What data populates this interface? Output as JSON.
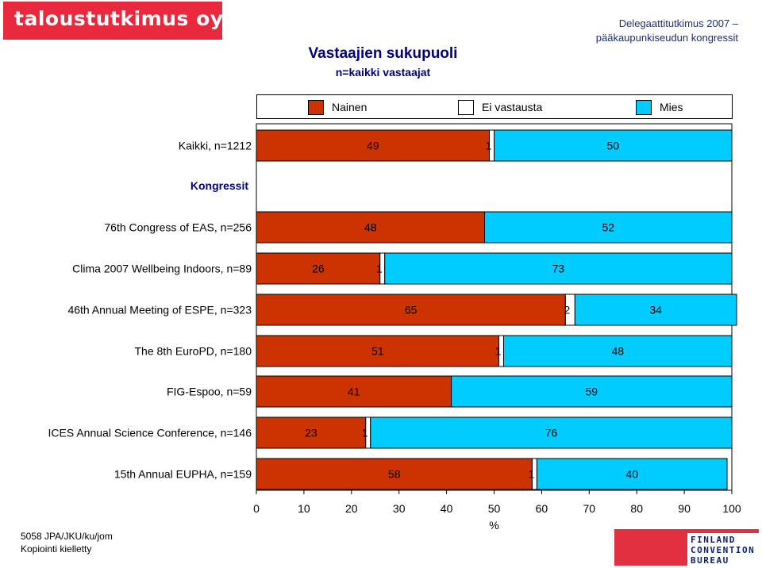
{
  "header": {
    "logo_text": "taloustutkimus oy",
    "corner_line1": "Delegaattitutkimus 2007 –",
    "corner_line2": "pääkaupunkiseudun kongressit"
  },
  "footer": {
    "code": "5058 JPA/JKU/ku/jom",
    "copyright": "Kopiointi kielletty",
    "brand_lines": [
      "FINLAND",
      "CONVENTION",
      "BUREAU"
    ]
  },
  "colors": {
    "nainen": "#cc3300",
    "ei_vastausta": "#ffffff",
    "mies": "#00ccff",
    "logo_red": "#e8283c"
  },
  "chart_data": {
    "type": "bar",
    "orientation": "horizontal",
    "stacked": true,
    "title": "Vastaajien sukupuoli",
    "subtitle": "n=kaikki vastaajat",
    "xlabel": "%",
    "xlim": [
      0,
      100
    ],
    "xticks": [
      "0",
      "10",
      "20",
      "30",
      "40",
      "50",
      "60",
      "70",
      "80",
      "90",
      "100"
    ],
    "legend": {
      "placement": "top",
      "entries": [
        "Nainen",
        "Ei vastausta",
        "Mies"
      ]
    },
    "section_label": "Kongressit",
    "categories": [
      "Kaikki, n=1212",
      "76th Congress of EAS, n=256",
      "Clima 2007 Wellbeing Indoors, n=89",
      "46th Annual Meeting of ESPE, n=323",
      "The 8th EuroPD, n=180",
      "FIG-Espoo, n=59",
      "ICES Annual Science Conference, n=146",
      "15th Annual EUPHA, n=159"
    ],
    "series": [
      {
        "name": "Nainen",
        "values": [
          49,
          48,
          26,
          65,
          51,
          41,
          23,
          58
        ]
      },
      {
        "name": "Ei vastausta",
        "values": [
          1,
          0,
          1,
          2,
          1,
          0,
          1,
          1
        ]
      },
      {
        "name": "Mies",
        "values": [
          50,
          52,
          73,
          34,
          48,
          59,
          76,
          40
        ]
      }
    ]
  }
}
